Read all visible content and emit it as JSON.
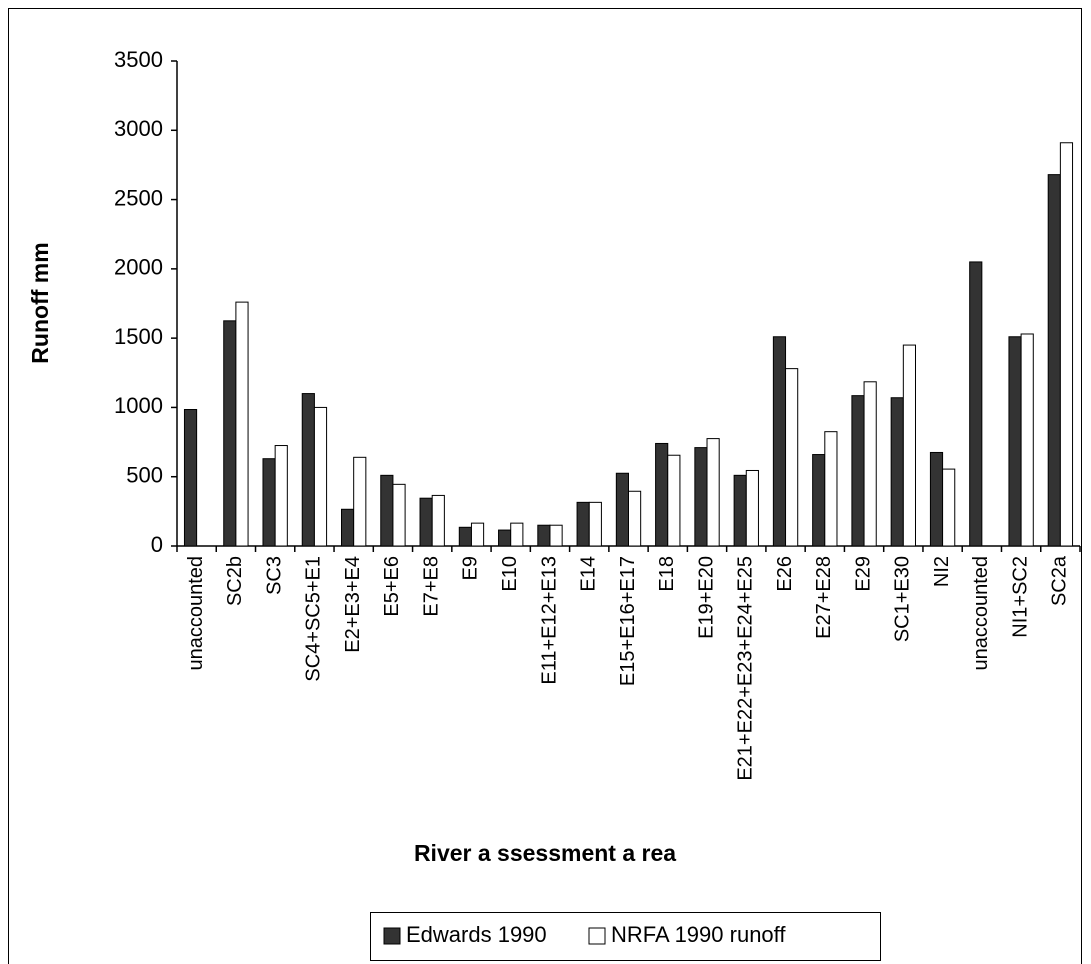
{
  "chart_data": {
    "type": "bar",
    "y_label": "Runoff mm",
    "x_label": "River a ssessment a rea",
    "categories": [
      "unaccounted",
      "SC2b",
      "SC3",
      "SC4+SC5+E1",
      "E2+E3+E4",
      "E5+E6",
      "E7+E8",
      "E9",
      "E10",
      "E11+E12+E13",
      "E14",
      "E15+E16+E17",
      "E18",
      "E19+E20",
      "E21+E22+E23+E24+E25",
      "E26",
      "E27+E28",
      "E29",
      "SC1+E30",
      "NI2",
      "unaccounted",
      "NI1+SC2",
      "SC2a"
    ],
    "series": [
      {
        "name": "Edwards 1990",
        "color": "#333333",
        "values": [
          985,
          1625,
          630,
          1100,
          265,
          510,
          345,
          135,
          115,
          150,
          315,
          525,
          740,
          710,
          510,
          1510,
          660,
          1085,
          1070,
          675,
          2050,
          1510,
          2680
        ]
      },
      {
        "name": "NRFA 1990 runoff",
        "color": "#ffffff",
        "values": [
          null,
          1760,
          725,
          1000,
          640,
          445,
          365,
          165,
          165,
          150,
          315,
          395,
          655,
          775,
          545,
          1280,
          825,
          1185,
          1450,
          555,
          null,
          1530,
          2910
        ]
      }
    ],
    "ylim": [
      0,
      3500
    ],
    "yticks": [
      0,
      500,
      1000,
      1500,
      2000,
      2500,
      3000,
      3500
    ],
    "legend": "bottom"
  }
}
